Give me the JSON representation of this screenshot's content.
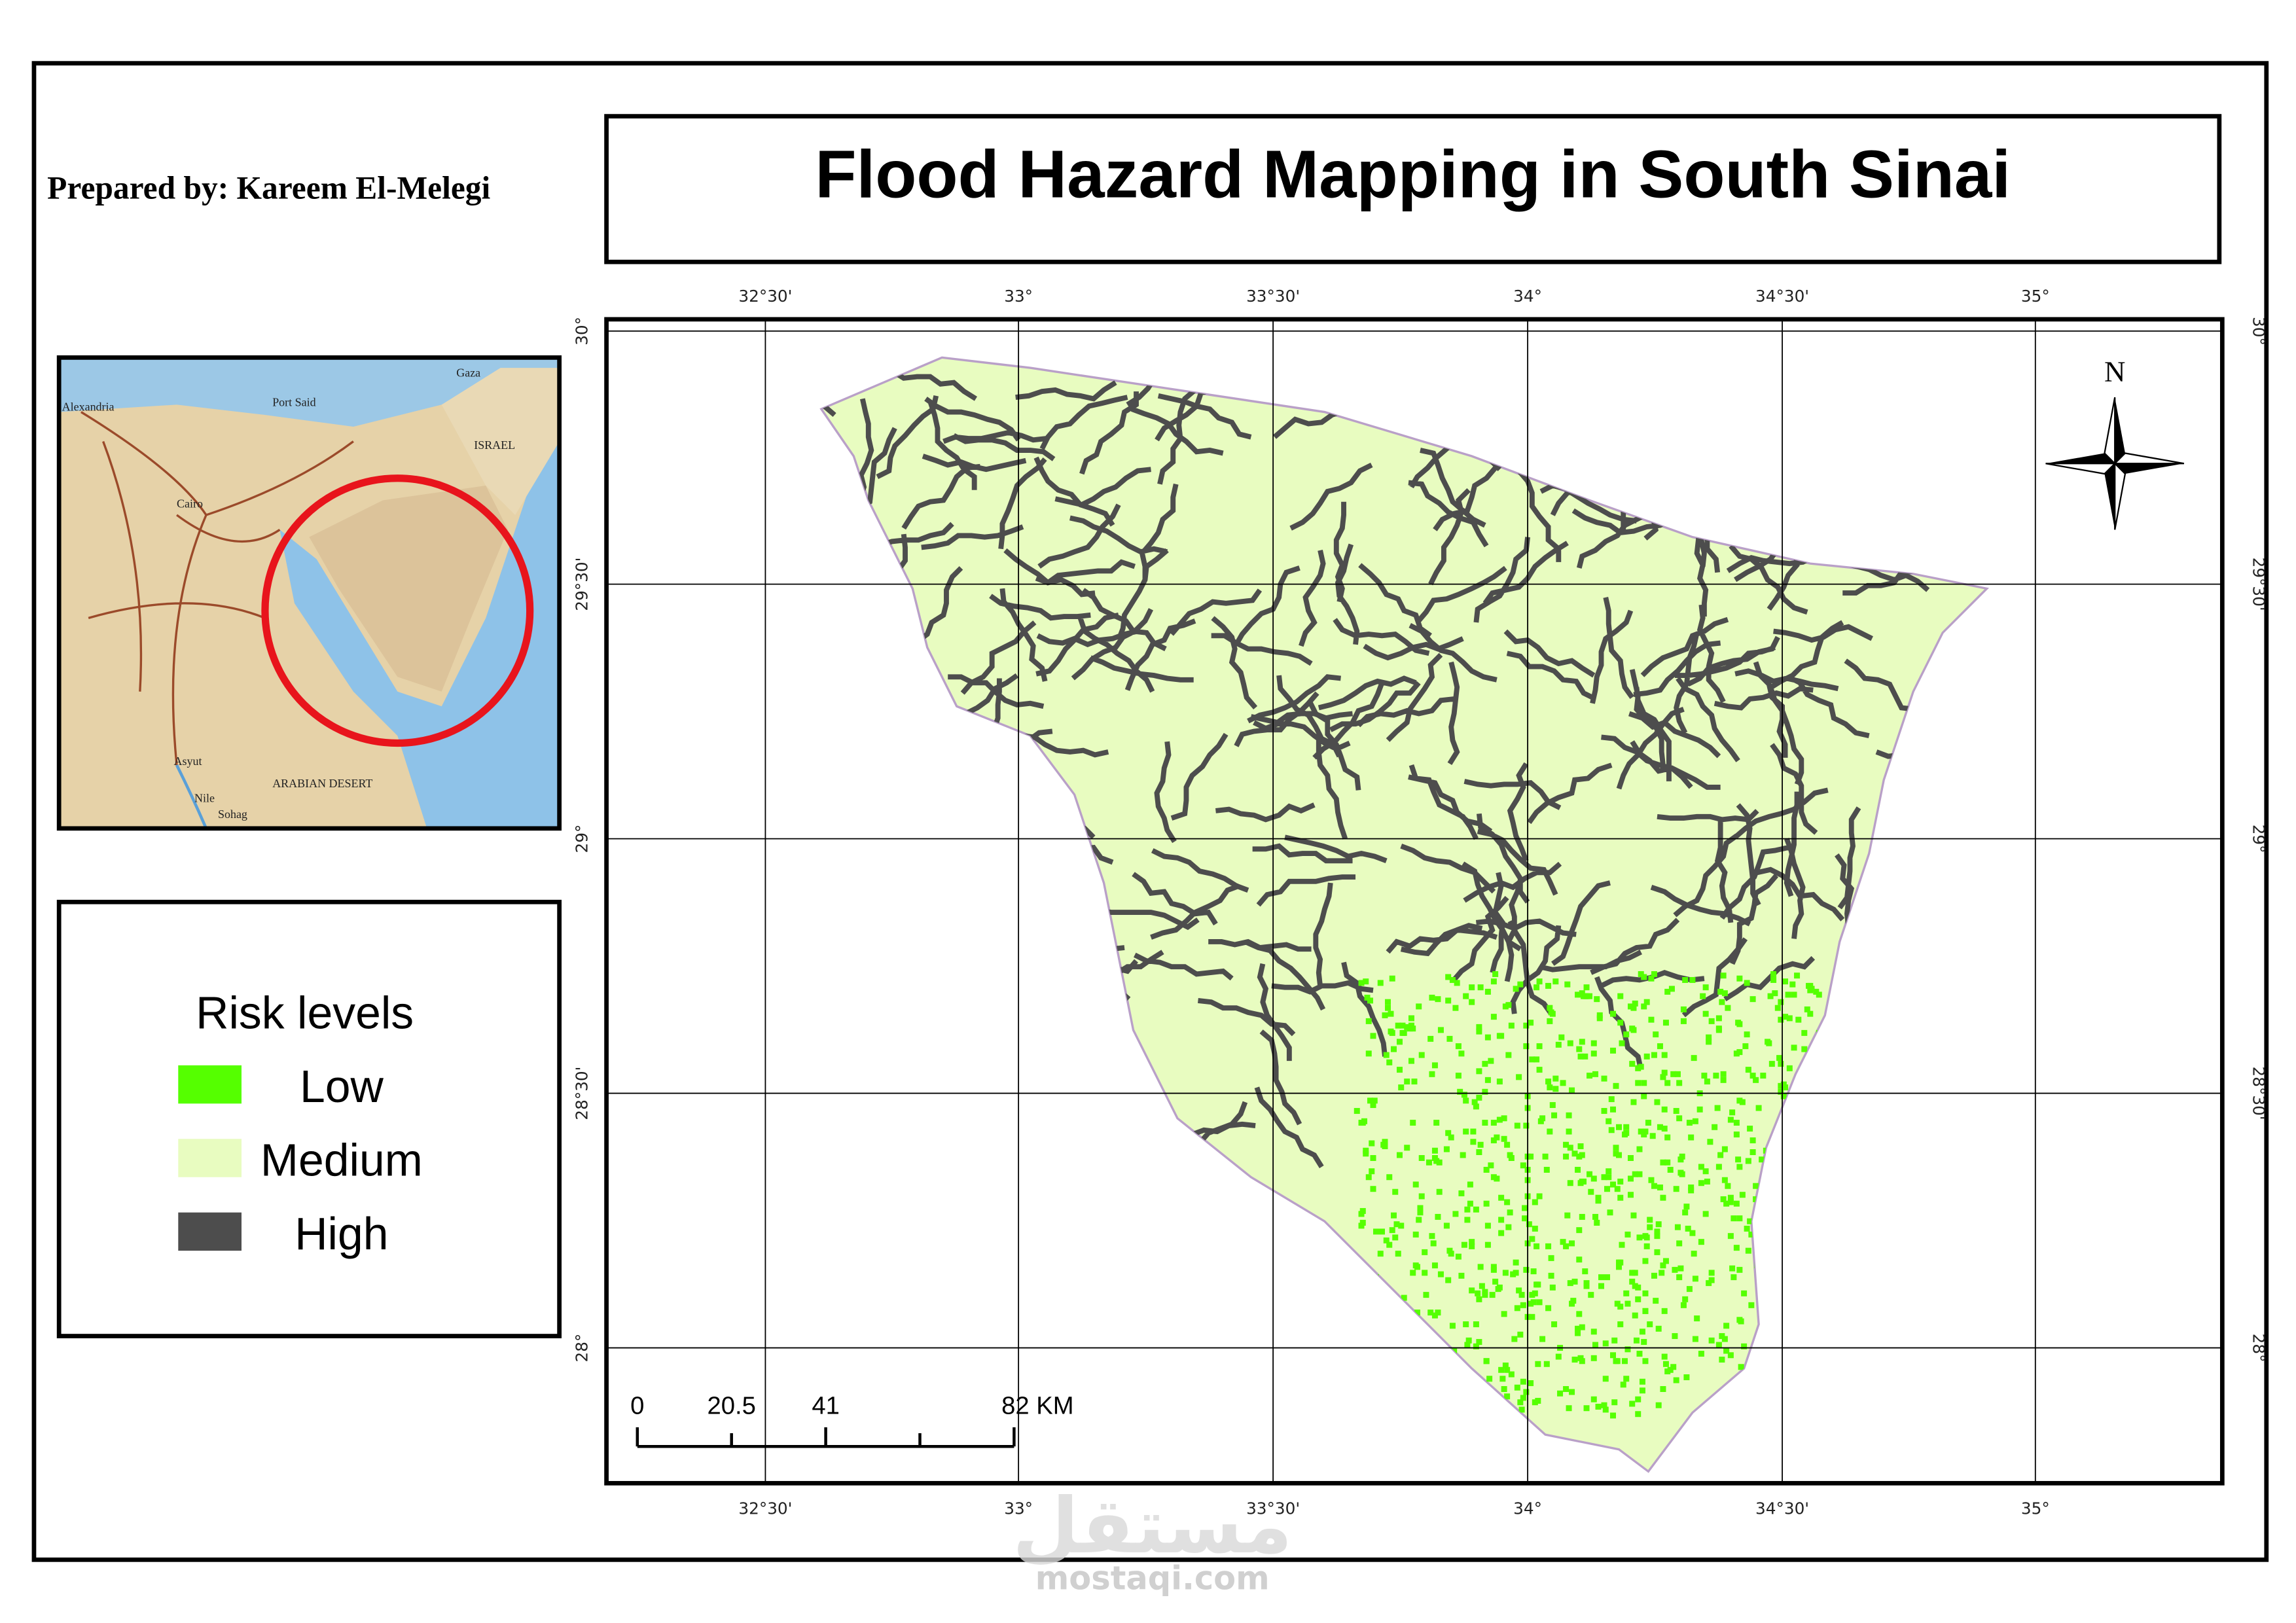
{
  "title": "Flood Hazard Mapping in South Sinai",
  "prepared_by": {
    "label": "Prepared by",
    "name": ": Kareem El-Melegi"
  },
  "legend": {
    "title": "Risk levels",
    "items": [
      {
        "label": "Low",
        "color": "#55ff00"
      },
      {
        "label": "Medium",
        "color": "#e8fcc0"
      },
      {
        "label": "High",
        "color": "#4d4d4d"
      }
    ]
  },
  "graticule": {
    "longitudes": [
      "32°30'",
      "33°",
      "33°30'",
      "34°",
      "34°30'",
      "35°"
    ],
    "latitudes": [
      "30°",
      "29°30'",
      "29°",
      "28°30'",
      "28°"
    ]
  },
  "north": "N",
  "scale_bar": [
    "0",
    "20.5",
    "41",
    "82 KM"
  ],
  "inset": {
    "labels": [
      "Alexandria",
      "Port Said",
      "Cairo",
      "Gaza",
      "ISRAEL",
      "Asyut",
      "Sohag",
      "ARABIAN DESERT",
      "Nile"
    ]
  },
  "watermark": {
    "logo": "مستقل",
    "site": "mostaqi.com"
  }
}
